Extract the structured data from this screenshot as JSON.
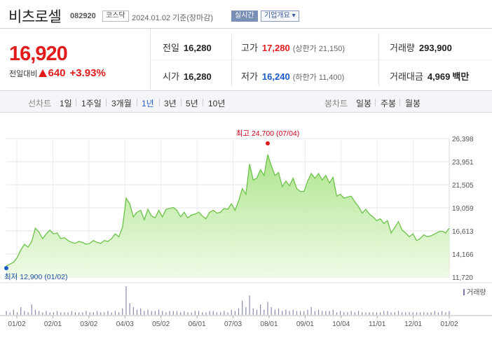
{
  "header": {
    "stock_name": "비츠로셀",
    "stock_code": "082920",
    "market": "코스닥",
    "as_of": "2024.01.02 기준(장마감)",
    "realtime_label": "실시간",
    "company_label": "기업개요 ▾"
  },
  "summary": {
    "price": "16,920",
    "change_label": "전일대비",
    "change_value": "640",
    "change_pct": "+3.93%",
    "prev_close_label": "전일",
    "prev_close": "16,280",
    "open_label": "시가",
    "open": "16,280",
    "high_label": "고가",
    "high": "17,280",
    "upper_limit": "(상한가 21,150)",
    "low_label": "저가",
    "low": "16,240",
    "lower_limit": "(하한가 11,400)",
    "volume_label": "거래량",
    "volume": "293,900",
    "amount_label": "거래대금",
    "amount": "4,969",
    "amount_unit": "백만",
    "colors": {
      "up": "#e21a1a",
      "down": "#1a5ac8"
    }
  },
  "tabs": {
    "line_chart_label": "선차트",
    "line_periods": [
      "1일",
      "1주일",
      "3개월",
      "1년",
      "3년",
      "5년",
      "10년"
    ],
    "active_period": "1년",
    "candle_chart_label": "봉차트",
    "candle_periods": [
      "일봉",
      "주봉",
      "월봉"
    ]
  },
  "chart_data": {
    "type": "area",
    "title": "",
    "xlabel": "",
    "ylabel": "",
    "y_ticks": [
      11720,
      14166,
      16613,
      19059,
      21505,
      23951,
      26398
    ],
    "y_tick_labels": [
      "11,720",
      "14,166",
      "16,613",
      "19,059",
      "21,505",
      "23,951",
      "26,398"
    ],
    "ylim": [
      11720,
      26398
    ],
    "x_tick_labels": [
      "01/02",
      "02/01",
      "03/02",
      "04/03",
      "05/02",
      "06/01",
      "07/03",
      "08/01",
      "09/01",
      "10/04",
      "11/01",
      "12/01",
      "01/02"
    ],
    "grid": true,
    "fill_color": "#b9e99a",
    "line_color": "#6cc24a",
    "high_annotation": "최고 24,700 (07/04)",
    "low_annotation": "최저 12,900 (01/02)",
    "high_value": 24700,
    "low_value": 12900,
    "series": [
      {
        "values": [
          12900,
          13100,
          13300,
          13800,
          14600,
          15200,
          14900,
          15500,
          16900,
          16500,
          15800,
          16300,
          16700,
          16300,
          16400,
          15800,
          15900,
          15600,
          15400,
          15300,
          15500,
          15400,
          15200,
          15300,
          15600,
          15400,
          15300,
          15600,
          15500,
          15800,
          16300,
          16000,
          17000,
          20100,
          19500,
          18100,
          18600,
          18800,
          17800,
          18900,
          18200,
          18000,
          18800,
          18100,
          18900,
          19000,
          19100,
          18800,
          18100,
          18600,
          18000,
          18300,
          18400,
          18600,
          18200,
          17900,
          18600,
          18800,
          18500,
          18600,
          19000,
          18900,
          19500,
          18800,
          19800,
          21100,
          20500,
          23700,
          22000,
          22200,
          23100,
          22500,
          24700,
          23500,
          22500,
          22800,
          21300,
          21900,
          21400,
          22200,
          21100,
          20800,
          20800,
          21900,
          22700,
          22200,
          22700,
          22000,
          22500,
          21700,
          22300,
          20300,
          20500,
          20100,
          20200,
          20300,
          19700,
          19200,
          18500,
          18900,
          18400,
          18100,
          17700,
          17900,
          17400,
          17700,
          16400,
          17000,
          17600,
          16700,
          16400,
          16000,
          16300,
          15600,
          15800,
          16200,
          16000,
          16100,
          16300,
          16500,
          16600,
          16400,
          16900
        ]
      }
    ],
    "volume_label": "거래량",
    "volume": [
      3,
      2,
      4,
      2,
      6,
      3,
      2,
      8,
      4,
      3,
      2,
      3,
      2,
      2,
      3,
      2,
      2,
      2,
      3,
      2,
      2,
      2,
      3,
      2,
      2,
      3,
      2,
      2,
      3,
      2,
      3,
      2,
      5,
      22,
      9,
      6,
      4,
      5,
      3,
      4,
      3,
      3,
      4,
      3,
      2,
      3,
      3,
      3,
      2,
      3,
      2,
      2,
      3,
      3,
      2,
      2,
      3,
      3,
      2,
      2,
      3,
      2,
      4,
      3,
      5,
      11,
      6,
      15,
      5,
      4,
      8,
      4,
      10,
      6,
      4,
      5,
      3,
      4,
      3,
      4,
      3,
      3,
      3,
      4,
      6,
      3,
      4,
      3,
      3,
      3,
      4,
      2,
      3,
      2,
      2,
      3,
      2,
      3,
      2,
      2,
      2,
      2,
      2,
      2,
      3,
      3,
      2,
      2,
      3,
      2,
      2,
      2,
      2,
      2,
      2,
      2,
      2,
      2,
      3,
      2,
      3,
      2,
      3
    ]
  }
}
